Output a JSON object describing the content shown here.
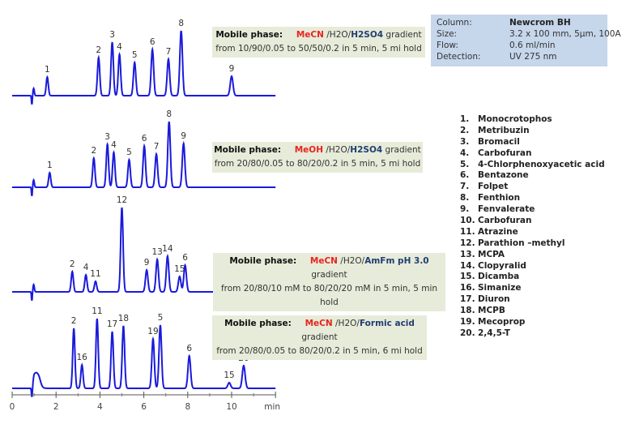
{
  "info_box": {
    "rows": [
      {
        "label": "Column:",
        "value": "Newcrom BH"
      },
      {
        "label": "Size:",
        "value": "3.2 x 100 mm, 5µm, 100A"
      },
      {
        "label": "Flow:",
        "value": "0.6 ml/min"
      },
      {
        "label": "Detection:",
        "value": "UV 275 nm"
      }
    ]
  },
  "mobile_phases": [
    {
      "label": "Mobile phase:",
      "organic": "MeCN",
      "water": " /H2O/",
      "additive": "H2SO4",
      "suffix": " gradient",
      "line2": "from 10/90/0.05 to 50/50/0.2 in 5 min, 5 mi hold"
    },
    {
      "label": "Mobile phase:",
      "organic": "MeOH",
      "water": " /H2O/",
      "additive": "H2SO4",
      "suffix": " gradient",
      "line2": "from 20/80/0.05 to 80/20/0.2 in 5 min, 5 mi hold"
    },
    {
      "label": "Mobile phase:",
      "organic": "MeCN",
      "water": " /H2O/",
      "additive": "AmFm pH 3.0",
      "suffix": " gradient",
      "line2": "from 20/80/10 mM to 80/20/20 mM in 5 min, 5 min hold"
    },
    {
      "label": "Mobile phase:",
      "organic": "MeCN",
      "water": " /H2O/",
      "additive": "Formic acid",
      "suffix": " gradient",
      "line2": "from 20/80/0.05 to 80/20/0.2 in 5 min, 6 mi hold"
    }
  ],
  "compounds": [
    {
      "n": "1.",
      "name": "Monocrotophos"
    },
    {
      "n": "2.",
      "name": "Metribuzin"
    },
    {
      "n": "3.",
      "name": "Bromacil"
    },
    {
      "n": "4.",
      "name": "Carbofuran"
    },
    {
      "n": "5.",
      "name": "4-Chlorphenoxyacetic acid"
    },
    {
      "n": "6.",
      "name": "Bentazone"
    },
    {
      "n": "7.",
      "name": "Folpet"
    },
    {
      "n": "8.",
      "name": "Fenthion"
    },
    {
      "n": "9.",
      "name": "Fenvalerate"
    },
    {
      "n": "10.",
      "name": "Carbofuran"
    },
    {
      "n": "11.",
      "name": "Atrazine"
    },
    {
      "n": "12.",
      "name": "Parathion –methyl"
    },
    {
      "n": "13.",
      "name": "MCPA"
    },
    {
      "n": "14.",
      "name": "Clopyralid"
    },
    {
      "n": "15.",
      "name": "Dicamba"
    },
    {
      "n": "16.",
      "name": "Simanize"
    },
    {
      "n": "17.",
      "name": "Diuron"
    },
    {
      "n": "18.",
      "name": "MCPB"
    },
    {
      "n": "19.",
      "name": "Mecoprop"
    },
    {
      "n": "20.",
      "name": "2,4,5-T"
    }
  ],
  "chart_data": {
    "type": "line",
    "xlabel": "min",
    "xlim": [
      0,
      12
    ],
    "xticks": [
      "0",
      "2",
      "4",
      "6",
      "8",
      "10",
      "min"
    ],
    "grid": false,
    "line_color": "#1a1adc",
    "series": [
      {
        "end_time": 12,
        "peaks": [
          {
            "label": "1",
            "t": 1.6,
            "h": 23
          },
          {
            "label": "2",
            "t": 3.94,
            "h": 47
          },
          {
            "label": "3",
            "t": 4.56,
            "h": 66
          },
          {
            "label": "4",
            "t": 4.89,
            "h": 51
          },
          {
            "label": "5",
            "t": 5.58,
            "h": 41
          },
          {
            "label": "6",
            "t": 6.39,
            "h": 57
          },
          {
            "label": "7",
            "t": 7.12,
            "h": 45
          },
          {
            "label": "8",
            "t": 7.7,
            "h": 80
          },
          {
            "label": "9",
            "t": 10.0,
            "h": 24
          }
        ]
      },
      {
        "end_time": 12,
        "peaks": [
          {
            "label": "1",
            "t": 1.71,
            "h": 18
          },
          {
            "label": "2",
            "t": 3.72,
            "h": 36
          },
          {
            "label": "3",
            "t": 4.34,
            "h": 53
          },
          {
            "label": "4",
            "t": 4.63,
            "h": 43
          },
          {
            "label": "5",
            "t": 5.33,
            "h": 34
          },
          {
            "label": "6",
            "t": 6.02,
            "h": 51
          },
          {
            "label": "7",
            "t": 6.57,
            "h": 41
          },
          {
            "label": "8",
            "t": 7.15,
            "h": 81
          },
          {
            "label": "9",
            "t": 7.81,
            "h": 54
          }
        ]
      },
      {
        "end_time": 10.1,
        "peaks": [
          {
            "label": "2",
            "t": 2.74,
            "h": 25
          },
          {
            "label": "4",
            "t": 3.36,
            "h": 21
          },
          {
            "label": "11",
            "t": 3.8,
            "h": 13
          },
          {
            "label": "12",
            "t": 5.0,
            "h": 104
          },
          {
            "label": "9",
            "t": 6.13,
            "h": 27
          },
          {
            "label": "13",
            "t": 6.61,
            "h": 40
          },
          {
            "label": "14",
            "t": 7.08,
            "h": 44
          },
          {
            "label": "15",
            "t": 7.63,
            "h": 19
          },
          {
            "label": "6",
            "t": 7.88,
            "h": 33
          }
        ]
      },
      {
        "end_time": 12,
        "peaks": [
          {
            "label": "2",
            "t": 2.81,
            "h": 74
          },
          {
            "label": "16",
            "t": 3.18,
            "h": 29
          },
          {
            "label": "11",
            "t": 3.87,
            "h": 86
          },
          {
            "label": "17",
            "t": 4.56,
            "h": 70
          },
          {
            "label": "18",
            "t": 5.07,
            "h": 77
          },
          {
            "label": "19",
            "t": 6.42,
            "h": 61
          },
          {
            "label": "5",
            "t": 6.75,
            "h": 78
          },
          {
            "label": "6",
            "t": 8.07,
            "h": 40
          },
          {
            "label": "15",
            "t": 9.89,
            "h": 7
          },
          {
            "label": "20",
            "t": 10.55,
            "h": 28
          }
        ]
      }
    ]
  }
}
